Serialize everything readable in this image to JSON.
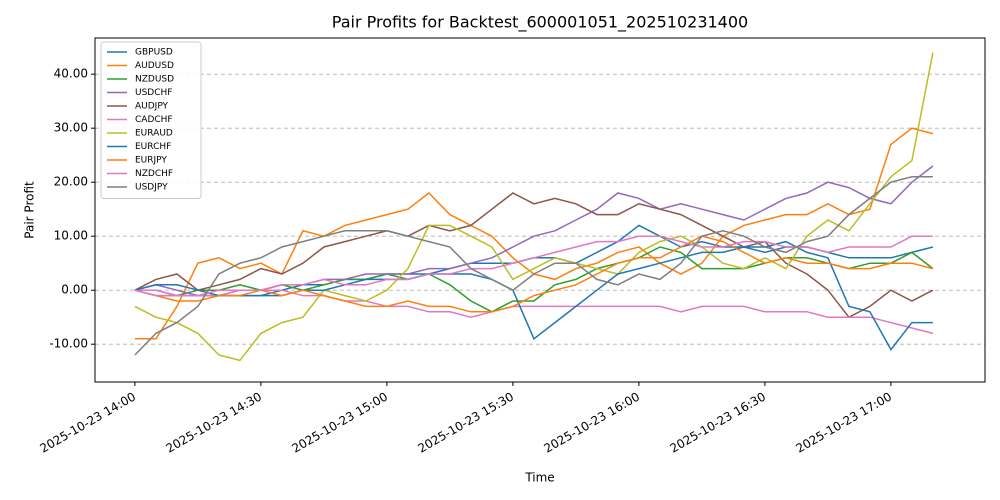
{
  "chart_data": {
    "type": "line",
    "title": "Pair Profits for Backtest_600001051_202510231400",
    "x_label": "Time",
    "y_label": "Pair Profit",
    "x": [
      "2025-10-23 14:00",
      "2025-10-23 14:05",
      "2025-10-23 14:10",
      "2025-10-23 14:15",
      "2025-10-23 14:20",
      "2025-10-23 14:25",
      "2025-10-23 14:30",
      "2025-10-23 14:35",
      "2025-10-23 14:40",
      "2025-10-23 14:45",
      "2025-10-23 14:50",
      "2025-10-23 14:55",
      "2025-10-23 15:00",
      "2025-10-23 15:05",
      "2025-10-23 15:10",
      "2025-10-23 15:15",
      "2025-10-23 15:20",
      "2025-10-23 15:25",
      "2025-10-23 15:30",
      "2025-10-23 15:35",
      "2025-10-23 15:40",
      "2025-10-23 15:45",
      "2025-10-23 15:50",
      "2025-10-23 15:55",
      "2025-10-23 16:00",
      "2025-10-23 16:05",
      "2025-10-23 16:10",
      "2025-10-23 16:15",
      "2025-10-23 16:20",
      "2025-10-23 16:25",
      "2025-10-23 16:30",
      "2025-10-23 16:35",
      "2025-10-23 16:40",
      "2025-10-23 16:45",
      "2025-10-23 16:50",
      "2025-10-23 16:55",
      "2025-10-23 17:00",
      "2025-10-23 17:05",
      "2025-10-23 17:10"
    ],
    "xlim": [
      "2025-10-23 13:50:30",
      "2025-10-23 17:22:24"
    ],
    "xticks": [
      "2025-10-23 14:00",
      "2025-10-23 14:30",
      "2025-10-23 15:00",
      "2025-10-23 15:30",
      "2025-10-23 16:00",
      "2025-10-23 16:30",
      "2025-10-23 17:00"
    ],
    "ylim": [
      -17,
      46.7
    ],
    "yticks": [
      {
        "value": -10,
        "label": "-10.00"
      },
      {
        "value": 0,
        "label": "0.00"
      },
      {
        "value": 10,
        "label": "10.00"
      },
      {
        "value": 20,
        "label": "20.00"
      },
      {
        "value": 30,
        "label": "30.00"
      },
      {
        "value": 40,
        "label": "40.00"
      }
    ],
    "grid": "y",
    "legend": "upper left",
    "series": [
      {
        "name": "GBPUSD",
        "color": "#1f77b4",
        "values": [
          0,
          0,
          -1,
          -1,
          -1,
          -1,
          -1,
          0,
          1,
          1,
          2,
          2,
          3,
          3,
          3,
          4,
          5,
          5,
          5,
          6,
          6,
          5,
          7,
          9,
          12,
          10,
          8,
          9,
          8,
          8,
          7,
          8,
          8,
          7,
          6,
          6,
          6,
          7,
          8
        ]
      },
      {
        "name": "AUDUSD",
        "color": "#ff7f0e",
        "values": [
          -9,
          -9,
          -3,
          5,
          6,
          4,
          5,
          3,
          11,
          10,
          12,
          13,
          14,
          15,
          18,
          14,
          12,
          10,
          6,
          3,
          2,
          4,
          5,
          7,
          8,
          5,
          3,
          5,
          10,
          12,
          13,
          14,
          14,
          16,
          14,
          15,
          27,
          30,
          29
        ]
      },
      {
        "name": "NZDUSD",
        "color": "#2ca02c",
        "values": [
          0,
          -1,
          -1,
          0,
          0,
          1,
          0,
          1,
          0,
          1,
          2,
          2,
          3,
          2,
          3,
          1,
          -2,
          -4,
          -2,
          -2,
          1,
          2,
          4,
          5,
          6,
          8,
          7,
          4,
          4,
          4,
          5,
          6,
          6,
          5,
          4,
          5,
          5,
          7,
          4
        ]
      },
      {
        "name": "USDCHF",
        "color": "#9467bd",
        "values": [
          0,
          1,
          0,
          -1,
          -1,
          0,
          0,
          1,
          1,
          2,
          2,
          3,
          3,
          3,
          4,
          4,
          5,
          6,
          8,
          10,
          11,
          13,
          15,
          18,
          17,
          15,
          16,
          15,
          14,
          13,
          15,
          17,
          18,
          20,
          19,
          17,
          16,
          20,
          23
        ]
      },
      {
        "name": "AUDJPY",
        "color": "#8c564b",
        "values": [
          0,
          2,
          3,
          0,
          1,
          2,
          4,
          3,
          5,
          8,
          9,
          10,
          11,
          10,
          12,
          11,
          12,
          15,
          18,
          16,
          17,
          16,
          14,
          14,
          16,
          15,
          14,
          12,
          10,
          8,
          9,
          5,
          3,
          0,
          -5,
          -3,
          0,
          -2,
          0
        ]
      },
      {
        "name": "CADCHF",
        "color": "#e377c2",
        "values": [
          0,
          0,
          -1,
          -1,
          -1,
          0,
          0,
          0,
          -1,
          -1,
          -2,
          -2,
          -3,
          -3,
          -4,
          -4,
          -5,
          -4,
          -3,
          -3,
          -3,
          -3,
          -3,
          -3,
          -3,
          -3,
          -4,
          -3,
          -3,
          -3,
          -4,
          -4,
          -4,
          -5,
          -5,
          -5,
          -6,
          -7,
          -8
        ]
      },
      {
        "name": "EURAUD",
        "color": "#bcbd22",
        "values": [
          -3,
          -5,
          -6,
          -8,
          -12,
          -13,
          -8,
          -6,
          -5,
          0,
          -1,
          -2,
          0,
          4,
          12,
          12,
          10,
          8,
          2,
          4,
          6,
          5,
          4,
          3,
          7,
          9,
          10,
          8,
          5,
          4,
          6,
          4,
          10,
          13,
          11,
          16,
          21,
          24,
          44
        ]
      },
      {
        "name": "EURCHF",
        "color": "#1f77b4",
        "values": [
          0,
          1,
          1,
          0,
          -1,
          -1,
          -1,
          -1,
          0,
          0,
          1,
          2,
          2,
          2,
          3,
          3,
          3,
          2,
          0,
          -9,
          -6,
          -3,
          0,
          3,
          4,
          5,
          6,
          7,
          7,
          8,
          8,
          9,
          7,
          6,
          -3,
          -4,
          -11,
          -6,
          -6
        ]
      },
      {
        "name": "EURJPY",
        "color": "#ff7f0e",
        "values": [
          0,
          -1,
          -2,
          -2,
          -1,
          -1,
          0,
          -1,
          0,
          -1,
          -2,
          -3,
          -3,
          -2,
          -3,
          -3,
          -4,
          -4,
          -3,
          -1,
          0,
          1,
          3,
          5,
          6,
          6,
          8,
          10,
          9,
          7,
          5,
          6,
          5,
          5,
          4,
          4,
          5,
          5,
          4
        ]
      },
      {
        "name": "NZDCHF",
        "color": "#e377c2",
        "values": [
          0,
          -1,
          -1,
          -1,
          0,
          0,
          0,
          1,
          1,
          2,
          1,
          1,
          2,
          2,
          3,
          3,
          4,
          4,
          5,
          6,
          7,
          8,
          9,
          9,
          10,
          10,
          9,
          8,
          8,
          9,
          9,
          8,
          8,
          7,
          8,
          8,
          8,
          10,
          10
        ]
      },
      {
        "name": "USDJPY",
        "color": "#7f7f7f",
        "values": [
          -12,
          -8,
          -6,
          -3,
          3,
          5,
          6,
          8,
          9,
          10,
          11,
          11,
          11,
          10,
          9,
          8,
          4,
          2,
          0,
          3,
          5,
          5,
          2,
          1,
          3,
          2,
          5,
          10,
          11,
          10,
          8,
          7,
          9,
          10,
          14,
          17,
          20,
          21,
          21
        ]
      }
    ]
  }
}
